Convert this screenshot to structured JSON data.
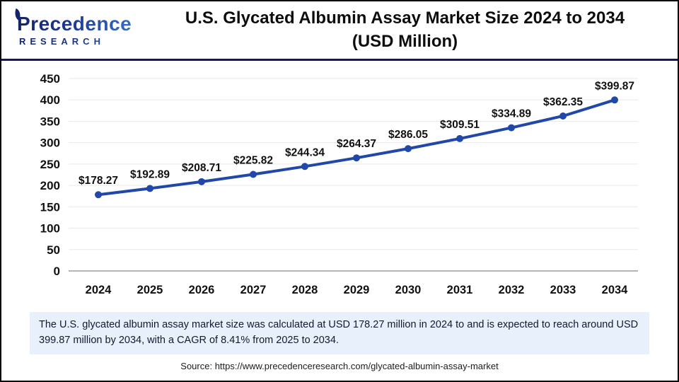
{
  "header": {
    "logo_line1": "Precedence",
    "logo_line2": "RESEARCH",
    "title_line1": "U.S. Glycated Albumin Assay Market Size 2024 to 2034",
    "title_line2": "(USD Million)"
  },
  "chart_data": {
    "type": "line",
    "title": "U.S. Glycated Albumin Assay Market Size 2024 to 2034 (USD Million)",
    "categories": [
      "2024",
      "2025",
      "2026",
      "2027",
      "2028",
      "2029",
      "2030",
      "2031",
      "2032",
      "2033",
      "2034"
    ],
    "values": [
      178.27,
      192.89,
      208.71,
      225.82,
      244.34,
      264.37,
      286.05,
      309.51,
      334.89,
      362.35,
      399.87
    ],
    "point_labels": [
      "$178.27",
      "$192.89",
      "$208.71",
      "$225.82",
      "$244.34",
      "$264.37",
      "$286.05",
      "$309.51",
      "$334.89",
      "$362.35",
      "$399.87"
    ],
    "xlabel": "",
    "ylabel": "",
    "ylim": [
      0,
      450
    ],
    "ytick_step": 50,
    "grid": true,
    "legend_position": "none",
    "line_color": "#2148a8",
    "gridline_color": "#e9e9e9",
    "axis_line_color": "#b5b5b5",
    "tick_label_color": "#111111",
    "data_label_color": "#111111"
  },
  "footer": {
    "summary": "The U.S. glycated albumin assay market size was calculated at USD 178.27 million in 2024 to and is expected to reach around USD 399.87 million by 2034, with a CAGR of 8.41% from 2025 to 2034.",
    "source": "Source: https://www.precedenceresearch.com/glycated-albumin-assay-market"
  }
}
